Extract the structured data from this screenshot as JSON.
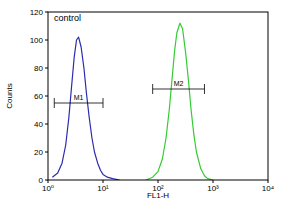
{
  "chart_data": {
    "type": "line",
    "x_label": "FL1-H",
    "y_label": "Counts",
    "log": "x",
    "grid": false,
    "xlim": [
      1,
      10000
    ],
    "xticks": [
      {
        "value": 1,
        "label": "10⁰"
      },
      {
        "value": 10,
        "label": "10¹"
      },
      {
        "value": 100,
        "label": "10²"
      },
      {
        "value": 1000,
        "label": "10³"
      },
      {
        "value": 10000,
        "label": "10⁴"
      }
    ],
    "ylim": [
      0,
      120
    ],
    "yticks": [
      0,
      20,
      40,
      60,
      80,
      100,
      120
    ],
    "series": [
      {
        "name": "control",
        "color": "#2b2bb0",
        "x": [
          1.2,
          1.5,
          1.8,
          2.1,
          2.4,
          2.7,
          3.0,
          3.3,
          3.6,
          4.0,
          4.5,
          5,
          5.6,
          6.3,
          7,
          8,
          9,
          10,
          12,
          15,
          20
        ],
        "values": [
          2,
          5,
          12,
          25,
          45,
          68,
          88,
          100,
          102,
          95,
          80,
          62,
          45,
          30,
          20,
          12,
          7,
          4,
          2,
          1,
          0
        ]
      },
      {
        "color": "#33cc33",
        "x": [
          60,
          80,
          100,
          120,
          140,
          160,
          180,
          200,
          220,
          250,
          280,
          320,
          360,
          400,
          450,
          500,
          600,
          700,
          800,
          1000
        ],
        "values": [
          0,
          2,
          6,
          15,
          30,
          50,
          72,
          92,
          105,
          112,
          108,
          90,
          70,
          50,
          32,
          20,
          8,
          3,
          1,
          0
        ]
      }
    ],
    "markers": [
      {
        "label": "M1",
        "x": [
          1.3,
          10
        ],
        "y": 55
      },
      {
        "label": "M2",
        "x": [
          80,
          700
        ],
        "y": 65
      }
    ]
  }
}
